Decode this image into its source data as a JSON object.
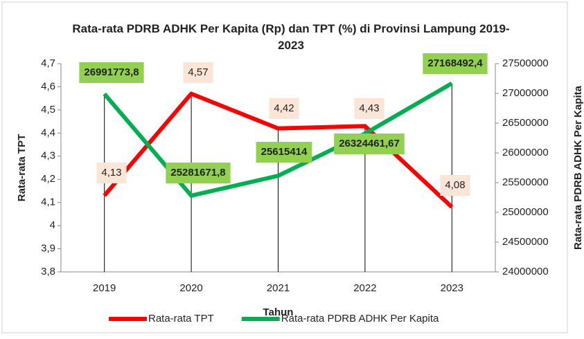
{
  "chart_data": {
    "type": "line",
    "title": "Rata-rata PDRB ADHK Per Kapita (Rp) dan TPT (%) di Provinsi Lampung 2019-2023",
    "x_label": "Tahun",
    "y_label": "Rata-rata TPT",
    "y2_label": "Rata-rata PDRB ADHK Per Kapita",
    "categories": [
      "2019",
      "2020",
      "2021",
      "2022",
      "2023"
    ],
    "series": [
      {
        "name": "Rata-rata TPT",
        "color": "#ff0000",
        "values": [
          4.13,
          4.57,
          4.42,
          4.43,
          4.08
        ],
        "value_labels": [
          "4,13",
          "4,57",
          "4,42",
          "4,43",
          "4,08"
        ]
      },
      {
        "name": "Rata-rata PDRB ADHK Per Kapita",
        "color": "#00b050",
        "axis": "y2",
        "values": [
          26991773.8,
          25281671.8,
          25615414,
          26324461.67,
          27168492.4
        ],
        "value_labels": [
          "26991773,8",
          "25281671,8",
          "25615414",
          "26324461,67",
          "27168492,4"
        ]
      }
    ],
    "ylim": [
      3.8,
      4.7
    ],
    "yticks": [
      {
        "value": 3.8,
        "label": "3,8"
      },
      {
        "value": 3.9,
        "label": "3,9"
      },
      4,
      {
        "value": 4.1,
        "label": "4,1"
      },
      {
        "value": 4.2,
        "label": "4,2"
      },
      {
        "value": 4.3,
        "label": "4,3"
      },
      {
        "value": 4.4,
        "label": "4,4"
      },
      {
        "value": 4.5,
        "label": "4,5"
      },
      {
        "value": 4.6,
        "label": "4,6"
      },
      {
        "value": 4.7,
        "label": "4,7"
      }
    ],
    "y2lim": [
      24000000,
      27500000
    ],
    "y2ticks": [
      24000000,
      24500000,
      25000000,
      25500000,
      26000000,
      26500000,
      27000000,
      27500000
    ],
    "legend": "bottom"
  }
}
